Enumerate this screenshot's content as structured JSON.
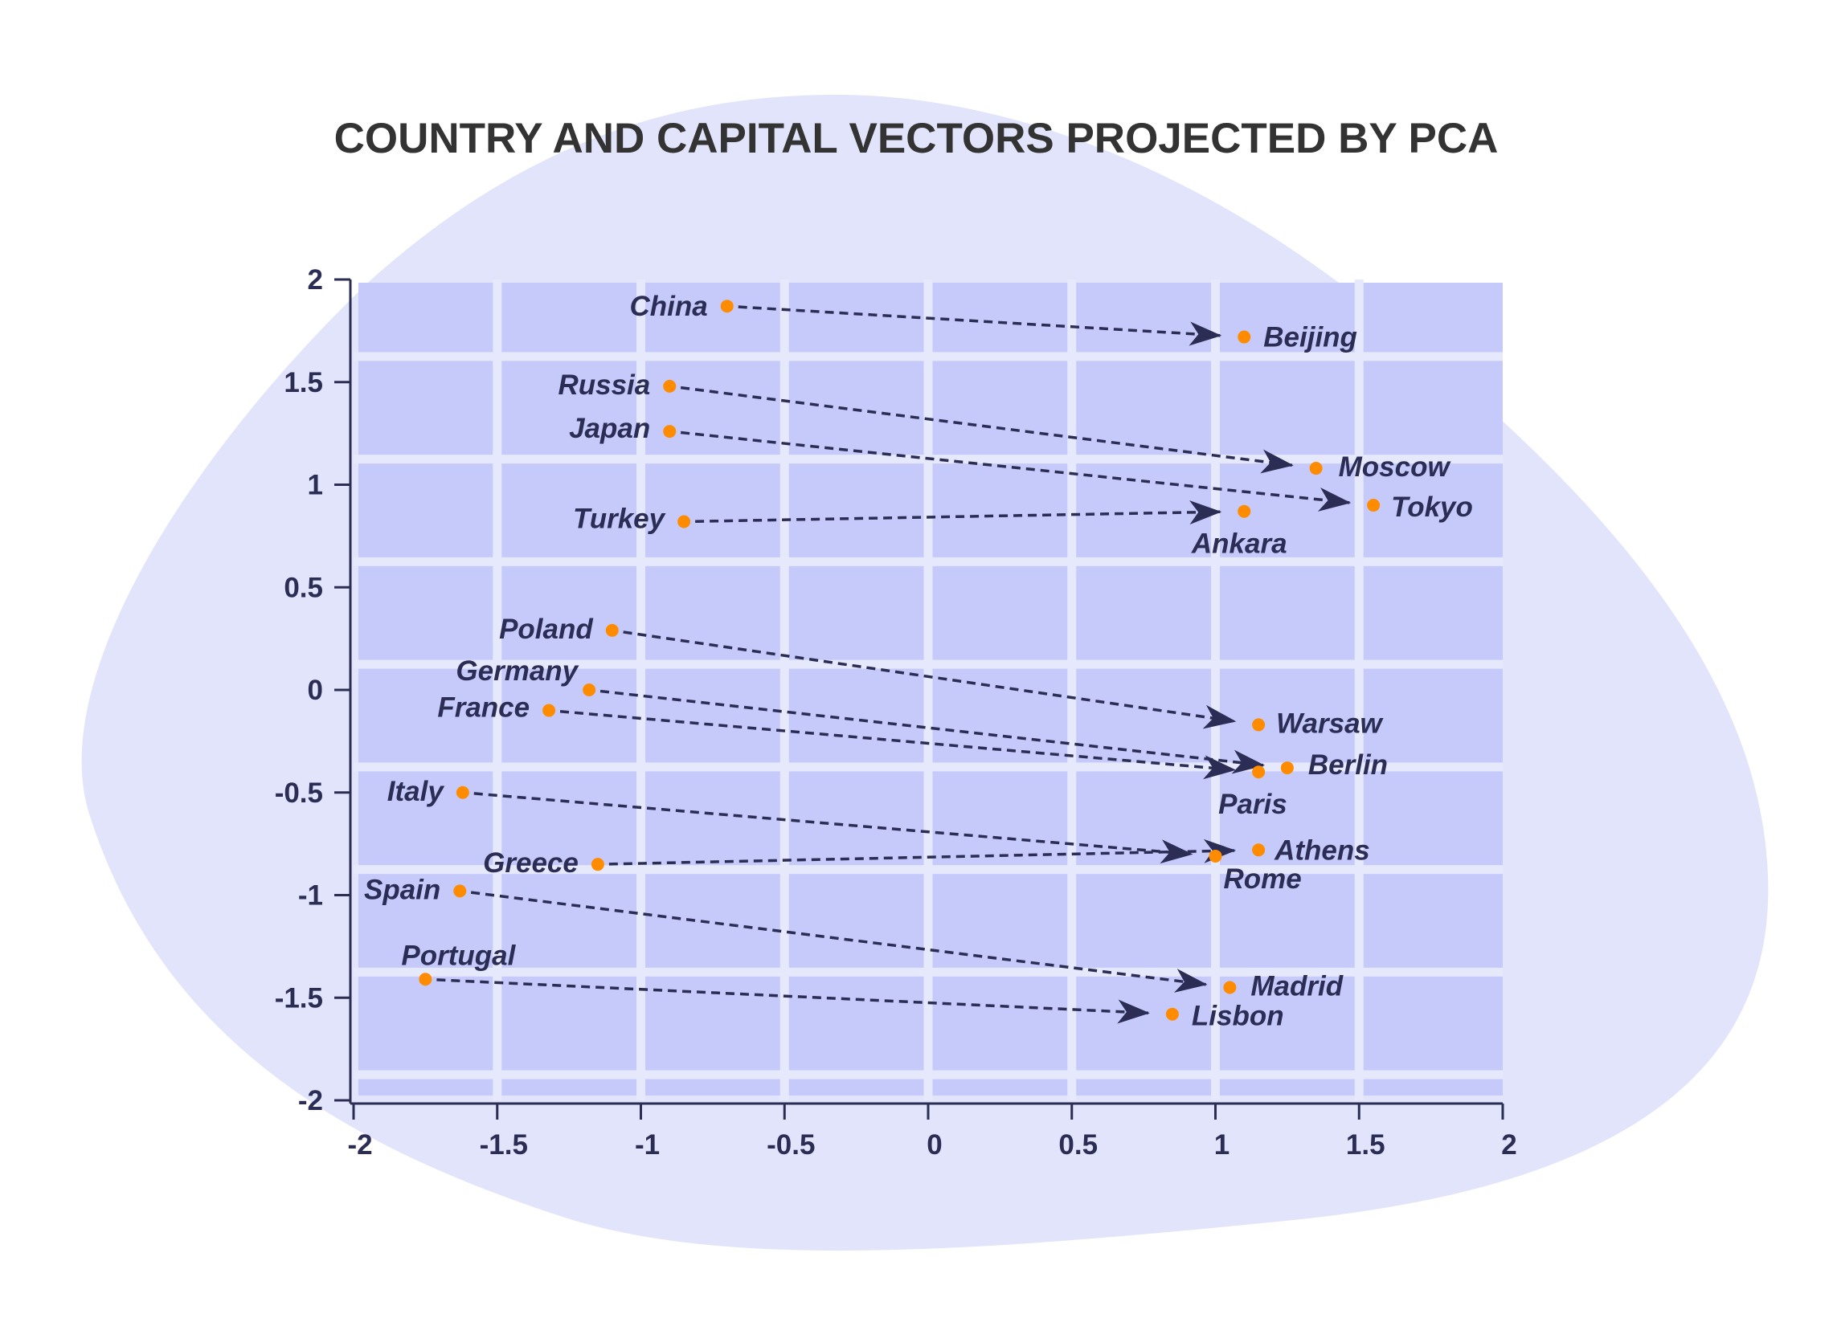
{
  "chart_data": {
    "type": "scatter",
    "title": "COUNTRY AND CAPITAL VECTORS PROJECTED BY PCA",
    "xlabel": "",
    "ylabel": "",
    "xlim": [
      -2,
      2
    ],
    "ylim": [
      -2,
      2
    ],
    "x_ticks": [
      "-2",
      "-1.5",
      "-1",
      "-0.5",
      "0",
      "0.5",
      "1",
      "1.5",
      "2"
    ],
    "y_ticks": [
      "2",
      "1.5",
      "1",
      "0.5",
      "0",
      "-0.5",
      "-1",
      "-1.5",
      "-2"
    ],
    "grid": true,
    "colors": {
      "blob": "#e2e4fb",
      "plot_bg": "#c5cafa",
      "grid": "#e6e8fc",
      "point": "#ff8c00",
      "arrow": "#2b2d55",
      "text": "#2b2d55",
      "title": "#333333"
    },
    "pairs": [
      {
        "country": "China",
        "country_xy": [
          -0.7,
          1.87
        ],
        "capital": "Beijing",
        "capital_xy": [
          1.1,
          1.72
        ]
      },
      {
        "country": "Russia",
        "country_xy": [
          -0.9,
          1.48
        ],
        "capital": "Moscow",
        "capital_xy": [
          1.35,
          1.08
        ]
      },
      {
        "country": "Japan",
        "country_xy": [
          -0.9,
          1.26
        ],
        "capital": "Tokyo",
        "capital_xy": [
          1.55,
          0.9
        ]
      },
      {
        "country": "Turkey",
        "country_xy": [
          -0.85,
          0.82
        ],
        "capital": "Ankara",
        "capital_xy": [
          1.1,
          0.87
        ]
      },
      {
        "country": "Poland",
        "country_xy": [
          -1.1,
          0.29
        ],
        "capital": "Warsaw",
        "capital_xy": [
          1.15,
          -0.17
        ]
      },
      {
        "country": "Germany",
        "country_xy": [
          -1.18,
          0.0
        ],
        "capital": "Berlin",
        "capital_xy": [
          1.25,
          -0.38
        ]
      },
      {
        "country": "France",
        "country_xy": [
          -1.32,
          -0.1
        ],
        "capital": "Paris",
        "capital_xy": [
          1.15,
          -0.4
        ]
      },
      {
        "country": "Italy",
        "country_xy": [
          -1.62,
          -0.5
        ],
        "capital": "Rome",
        "capital_xy": [
          1.0,
          -0.81
        ]
      },
      {
        "country": "Greece",
        "country_xy": [
          -1.15,
          -0.85
        ],
        "capital": "Athens",
        "capital_xy": [
          1.15,
          -0.78
        ]
      },
      {
        "country": "Spain",
        "country_xy": [
          -1.63,
          -0.98
        ],
        "capital": "Madrid",
        "capital_xy": [
          1.05,
          -1.45
        ]
      },
      {
        "country": "Portugal",
        "country_xy": [
          -1.75,
          -1.41
        ],
        "capital": "Lisbon",
        "capital_xy": [
          0.85,
          -1.58
        ]
      }
    ]
  }
}
